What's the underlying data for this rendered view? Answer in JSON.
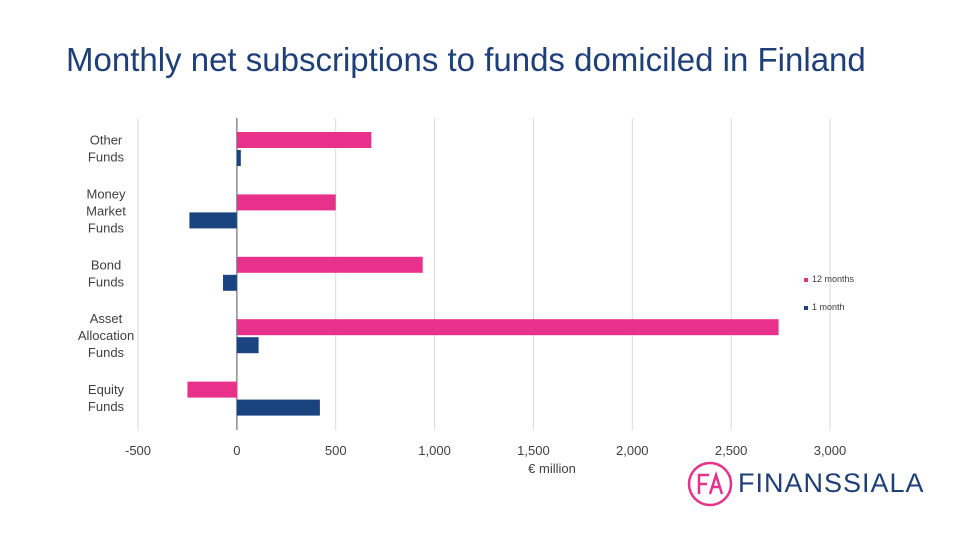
{
  "slide": {
    "title": "Monthly net subscriptions to funds domiciled in Finland"
  },
  "brand": {
    "name": "FINANSSIALA",
    "monogram": "FA",
    "accent": "#e8318a",
    "navy": "#1f3f78"
  },
  "chart_data": {
    "type": "bar",
    "orientation": "horizontal",
    "title": "",
    "xlabel": "€ million",
    "ylabel": "",
    "xlim": [
      -500,
      3000
    ],
    "xticks": [
      -500,
      0,
      500,
      1000,
      1500,
      2000,
      2500,
      3000
    ],
    "xtick_labels": [
      "-500",
      "0",
      "500",
      "1,000",
      "1,500",
      "2,000",
      "2,500",
      "3,000"
    ],
    "categories": [
      "Other Funds",
      "Money Market Funds",
      "Bond Funds",
      "Asset Allocation Funds",
      "Equity Funds"
    ],
    "category_lines": [
      [
        "Other",
        "Funds"
      ],
      [
        "Money",
        "Market",
        "Funds"
      ],
      [
        "Bond",
        "Funds"
      ],
      [
        "Asset",
        "Allocation",
        "Funds"
      ],
      [
        "Equity",
        "Funds"
      ]
    ],
    "series": [
      {
        "name": "12 months",
        "color": "#e8318a",
        "values": [
          680,
          500,
          940,
          2740,
          -250
        ]
      },
      {
        "name": "1 month",
        "color": "#1a4480",
        "values": [
          20,
          -240,
          -70,
          110,
          420
        ]
      }
    ],
    "grid": true,
    "legend_position": "right"
  }
}
